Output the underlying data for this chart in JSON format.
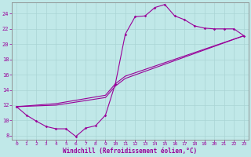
{
  "xlabel": "Windchill (Refroidissement éolien,°C)",
  "bg_color": "#c0e8e8",
  "line_color": "#990099",
  "grid_color": "#b0d8d8",
  "xlim": [
    -0.5,
    23.5
  ],
  "ylim": [
    7.5,
    25.5
  ],
  "xticks": [
    0,
    1,
    2,
    3,
    4,
    5,
    6,
    7,
    8,
    9,
    10,
    11,
    12,
    13,
    14,
    15,
    16,
    17,
    18,
    19,
    20,
    21,
    22,
    23
  ],
  "yticks": [
    8,
    10,
    12,
    14,
    16,
    18,
    20,
    22,
    24
  ],
  "series1": [
    [
      0,
      11.8
    ],
    [
      1,
      10.7
    ],
    [
      2,
      9.9
    ],
    [
      3,
      9.2
    ],
    [
      4,
      8.9
    ],
    [
      5,
      8.9
    ],
    [
      6,
      7.9
    ],
    [
      7,
      9.0
    ],
    [
      8,
      9.3
    ],
    [
      9,
      10.7
    ],
    [
      10,
      14.8
    ],
    [
      11,
      21.3
    ],
    [
      12,
      23.6
    ],
    [
      13,
      23.7
    ],
    [
      14,
      24.8
    ],
    [
      15,
      25.2
    ],
    [
      16,
      23.7
    ],
    [
      17,
      23.2
    ],
    [
      18,
      22.4
    ],
    [
      19,
      22.1
    ],
    [
      20,
      22.0
    ],
    [
      21,
      22.0
    ],
    [
      22,
      22.0
    ],
    [
      23,
      21.1
    ]
  ],
  "series2": [
    [
      0,
      11.8
    ],
    [
      4,
      12.0
    ],
    [
      9,
      13.0
    ],
    [
      10,
      14.5
    ],
    [
      11,
      15.5
    ],
    [
      23,
      21.1
    ]
  ],
  "series3": [
    [
      0,
      11.8
    ],
    [
      4,
      12.2
    ],
    [
      9,
      13.3
    ],
    [
      10,
      14.8
    ],
    [
      11,
      15.8
    ],
    [
      23,
      21.1
    ]
  ]
}
